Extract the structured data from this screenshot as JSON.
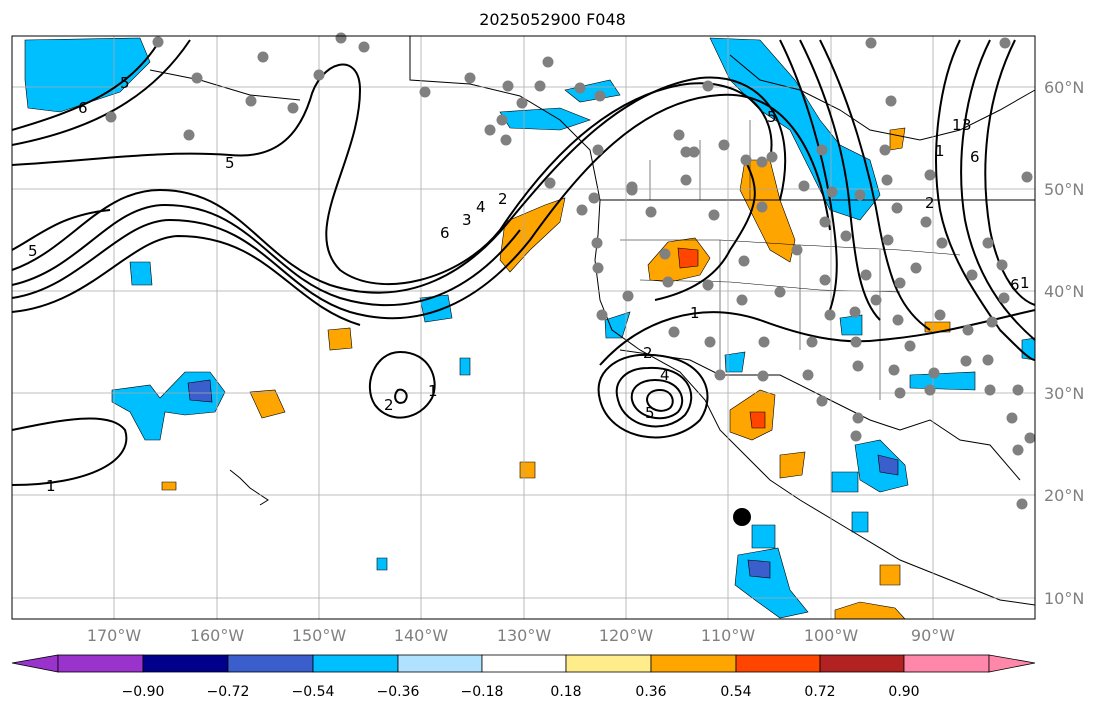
{
  "title": "2025052900 F048",
  "lat_labels": [
    "60°N",
    "50°N",
    "40°N",
    "30°N",
    "20°N",
    "10°N"
  ],
  "lon_labels": [
    "170°W",
    "160°W",
    "150°W",
    "140°W",
    "130°W",
    "120°W",
    "110°W",
    "100°W",
    "90°W"
  ],
  "colorbar": {
    "ticks": [
      "−0.90",
      "−0.72",
      "−0.54",
      "−0.36",
      "−0.18",
      "0.18",
      "0.36",
      "0.54",
      "0.72",
      "0.90"
    ],
    "colors": [
      "#9933cc",
      "#00008b",
      "#3a5fcd",
      "#00bfff",
      "#b0e2ff",
      "#ffffff",
      "#ffec8b",
      "#ffa500",
      "#ff4500",
      "#b22222",
      "#ff88aa"
    ]
  },
  "contour_labels": [
    "5",
    "6",
    "5",
    "5",
    "1",
    "3",
    "4",
    "6",
    "2",
    "1",
    "2",
    "4",
    "5",
    "1",
    "1",
    "5",
    "2",
    "1",
    "1",
    "3",
    "6",
    "2",
    "6"
  ],
  "colors": {
    "negative_fill": "#00bfff",
    "positive_fill": "#ffa500",
    "strong_positive": "#ff4500",
    "strong_negative": "#3a5fcd",
    "station_dot": "#808080"
  }
}
